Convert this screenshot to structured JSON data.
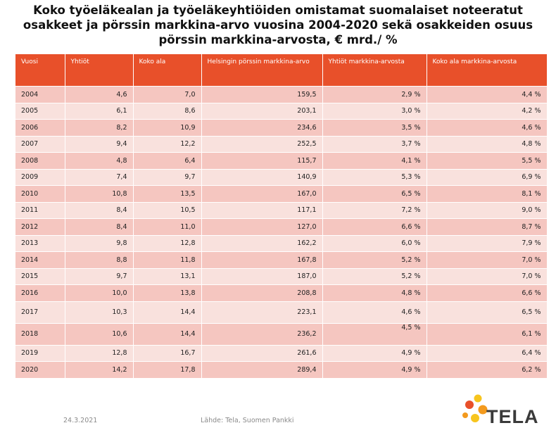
{
  "title": {
    "line1": "Koko työeläkealan ja työeläkeyhtiöiden omistamat suomalaiset noteeratut",
    "line2": "osakkeet ja pörssin markkina-arvo vuosina 2004-2020 sekä osakkeiden osuus",
    "line3": "pörssin markkina-arvosta, € mrd./ %"
  },
  "table": {
    "headers": [
      "Vuosi",
      "Yhtiöt",
      "Koko ala",
      "Helsingin pörssin markkina-arvo",
      "Yhtiöt markkina-arvosta",
      "Koko ala markkina-arvosta"
    ],
    "rows": [
      [
        "2004",
        "4,6",
        "7,0",
        "159,5",
        "2,9 %",
        "4,4 %"
      ],
      [
        "2005",
        "6,1",
        "8,6",
        "203,1",
        "3,0 %",
        "4,2 %"
      ],
      [
        "2006",
        "8,2",
        "10,9",
        "234,6",
        "3,5 %",
        "4,6 %"
      ],
      [
        "2007",
        "9,4",
        "12,2",
        "252,5",
        "3,7 %",
        "4,8 %"
      ],
      [
        "2008",
        "4,8",
        "6,4",
        "115,7",
        "4,1 %",
        "5,5 %"
      ],
      [
        "2009",
        "7,4",
        "9,7",
        "140,9",
        "5,3 %",
        "6,9 %"
      ],
      [
        "2010",
        "10,8",
        "13,5",
        "167,0",
        "6,5 %",
        "8,1 %"
      ],
      [
        "2011",
        "8,4",
        "10,5",
        "117,1",
        "7,2 %",
        "9,0 %"
      ],
      [
        "2012",
        "8,4",
        "11,0",
        "127,0",
        "6,6 %",
        "8,7 %"
      ],
      [
        "2013",
        "9,8",
        "12,8",
        "162,2",
        "6,0 %",
        "7,9 %"
      ],
      [
        "2014",
        "8,8",
        "11,8",
        "167,8",
        "5,2 %",
        "7,0 %"
      ],
      [
        "2015",
        "9,7",
        "13,1",
        "187,0",
        "5,2 %",
        "7,0 %"
      ],
      [
        "2016",
        "10,0",
        "13,8",
        "208,8",
        "4,8 %",
        "6,6 %"
      ],
      [
        "2017",
        "10,3",
        "14,4",
        "223,1",
        "4,6 %",
        "6,5 %"
      ],
      [
        "2018",
        "10,6",
        "14,4",
        "236,2",
        "4,5 %",
        "6,1 %"
      ],
      [
        "2019",
        "12,8",
        "16,7",
        "261,6",
        "4,9 %",
        "6,4 %"
      ],
      [
        "2020",
        "14,2",
        "17,8",
        "289,4",
        "4,9 %",
        "6,2 %"
      ]
    ]
  },
  "footer": {
    "date": "24.3.2021",
    "source": "Lähde: Tela, Suomen Pankki"
  },
  "logo": {
    "text": "TELA",
    "colors": {
      "orange": "#f39a1e",
      "orange_dark": "#e8502a",
      "yellow": "#f7c51e",
      "text": "#3a3a3a"
    }
  }
}
